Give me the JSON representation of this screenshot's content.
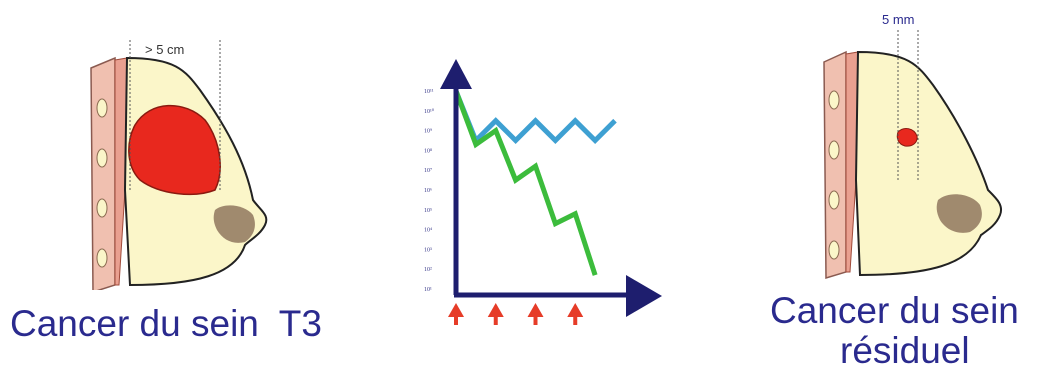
{
  "left_panel": {
    "measure_label": "> 5 cm",
    "caption": "Cancer du sein  T3"
  },
  "right_panel": {
    "measure_label": "5 mm",
    "caption_line1": "Cancer du sein",
    "caption_line2": "résiduel"
  },
  "chart": {
    "y_ticks": [
      "10¹",
      "10²",
      "10³",
      "10⁴",
      "10⁵",
      "10⁶",
      "10⁷",
      "10⁸",
      "10⁹",
      "10¹⁰",
      "10¹¹"
    ],
    "treatment_markers": 4
  },
  "chart_data": {
    "type": "line",
    "y_scale": "log",
    "ylim": [
      1,
      11
    ],
    "y_ticks": [
      "10¹",
      "10²",
      "10³",
      "10⁴",
      "10⁵",
      "10⁶",
      "10⁷",
      "10⁸",
      "10⁹",
      "10¹⁰",
      "10¹¹"
    ],
    "x": [
      0,
      1,
      2,
      3,
      4,
      5,
      6,
      7,
      8
    ],
    "series": [
      {
        "color": "#3ea0d2",
        "values": [
          11,
          8.5,
          9.5,
          8.5,
          9.5,
          8.5,
          9.5,
          8.5,
          9.5
        ]
      },
      {
        "color": "#3cbc3c",
        "values": [
          11,
          8.3,
          9.0,
          6.5,
          7.2,
          4.3,
          4.8,
          1.7,
          null
        ]
      }
    ],
    "markers_x": [
      0,
      2,
      4,
      6
    ],
    "colors": {
      "axis": "#1e1e6e",
      "marker": "#e63c28"
    }
  },
  "colors": {
    "caption": "#2a2a8e",
    "breast_fill": "#fbf6c9",
    "tumor": "#e8281e",
    "areola": "#a08a6e",
    "chest_wall": "#f0c0b0"
  }
}
